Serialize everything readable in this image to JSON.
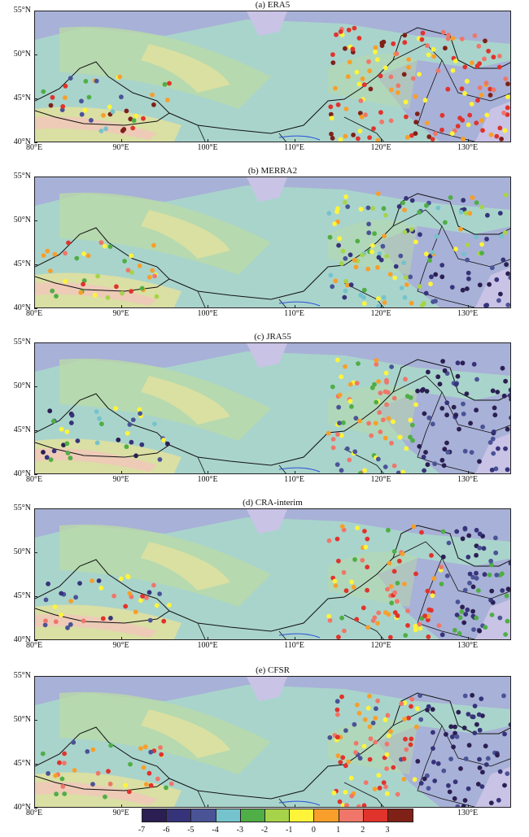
{
  "panels": [
    {
      "title": "(a) ERA5",
      "key": "era5"
    },
    {
      "title": "(b) MERRA2",
      "key": "merra2"
    },
    {
      "title": "(c) JRA55",
      "key": "jra55"
    },
    {
      "title": "(d) CRA-interim",
      "key": "cra"
    },
    {
      "title": "(e) CFSR",
      "key": "cfsr"
    }
  ],
  "lat_labels": [
    "55°N",
    "50°N",
    "45°N",
    "40°N"
  ],
  "lon_labels": [
    "80°E",
    "90°E",
    "100°E",
    "110°E",
    "120°E",
    "130°E"
  ],
  "map_extent": {
    "lon": [
      80,
      135
    ],
    "lat": [
      40,
      55
    ]
  },
  "colorbar": {
    "labels": [
      "-7",
      "-6",
      "-5",
      "-4",
      "-3",
      "-2",
      "-1",
      "0",
      "1",
      "2",
      "3"
    ],
    "colors": [
      "#2b1e52",
      "#36337a",
      "#4a5396",
      "#75c3cc",
      "#4fae45",
      "#a7d34a",
      "#fff43a",
      "#f79f2a",
      "#ef7669",
      "#e0332c",
      "#7f2117"
    ]
  },
  "background_colors": {
    "ocean_low": "#a9d4cc",
    "mid": "#b9d9a8",
    "high": "#dfe0a0",
    "peak": "#eec9b9",
    "lowland": "#a7a8da",
    "sea": "#c9c3e6"
  }
}
